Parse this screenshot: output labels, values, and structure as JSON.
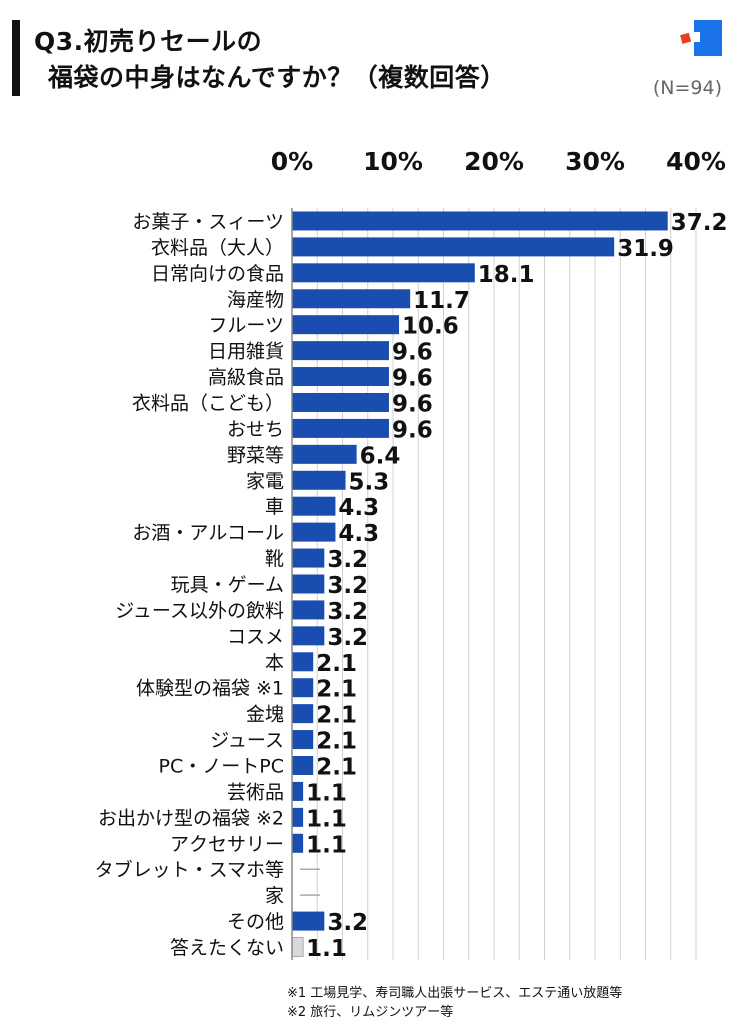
{
  "header": {
    "title_line1": "Q3.初売りセールの",
    "title_line2": "福袋の中身はなんですか？（複数回答）",
    "sample_size": "(N=94)"
  },
  "logo_icon": "brand-logo-icon",
  "colors": {
    "bar": "#1a4db0",
    "bar_muted": "#d9d9d9",
    "grid": "#d0d0d0",
    "logo_blue": "#1a73e8",
    "logo_red": "#e8401c"
  },
  "footnotes": [
    "※1 工場見学、寿司職人出張サービス、エステ通い放題等",
    "※2 旅行、リムジンツアー等"
  ],
  "chart_data": {
    "type": "bar",
    "orientation": "horizontal",
    "xlim": [
      0,
      40
    ],
    "xticks": [
      "0%",
      "10%",
      "20%",
      "30%",
      "40%"
    ],
    "grid": true,
    "categories": [
      "お菓子・スィーツ",
      "衣料品（大人）",
      "日常向けの食品",
      "海産物",
      "フルーツ",
      "日用雑貨",
      "高級食品",
      "衣料品（こども）",
      "おせち",
      "野菜等",
      "家電",
      "車",
      "お酒・アルコール",
      "靴",
      "玩具・ゲーム",
      "ジュース以外の飲料",
      "コスメ",
      "本",
      "体験型の福袋 ※1",
      "金塊",
      "ジュース",
      "PC・ノートPC",
      "芸術品",
      "お出かけ型の福袋 ※2",
      "アクセサリー",
      "タブレット・スマホ等",
      "家",
      "その他",
      "答えたくない"
    ],
    "values": [
      37.2,
      31.9,
      18.1,
      11.7,
      10.6,
      9.6,
      9.6,
      9.6,
      9.6,
      6.4,
      5.3,
      4.3,
      4.3,
      3.2,
      3.2,
      3.2,
      3.2,
      2.1,
      2.1,
      2.1,
      2.1,
      2.1,
      1.1,
      1.1,
      1.1,
      0,
      0,
      3.2,
      1.1
    ],
    "labels": [
      "37.2",
      "31.9",
      "18.1",
      "11.7",
      "10.6",
      "9.6",
      "9.6",
      "9.6",
      "9.6",
      "6.4",
      "5.3",
      "4.3",
      "4.3",
      "3.2",
      "3.2",
      "3.2",
      "3.2",
      "2.1",
      "2.1",
      "2.1",
      "2.1",
      "2.1",
      "1.1",
      "1.1",
      "1.1",
      "",
      "",
      "3.2",
      "1.1"
    ],
    "muted_category": "答えたくない"
  }
}
